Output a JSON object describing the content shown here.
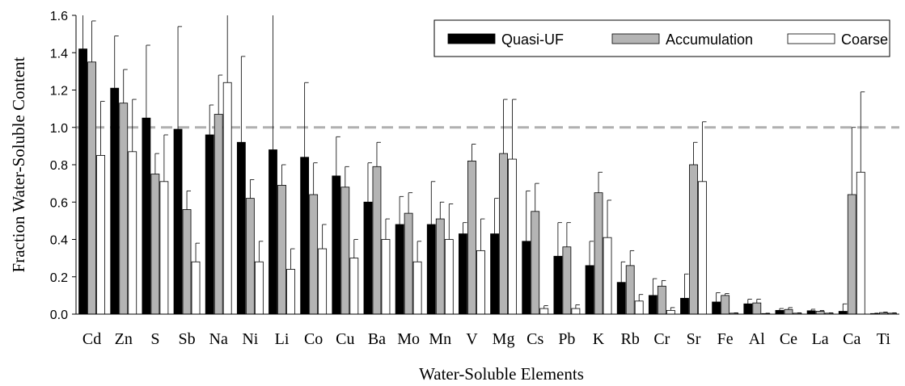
{
  "chart_data": {
    "type": "bar",
    "title": "",
    "xlabel": "Water-Soluble Elements",
    "ylabel": "Fraction Water-Soluble Content",
    "ylim": [
      0,
      1.6
    ],
    "yticks": [
      "0.0",
      "0.2",
      "0.4",
      "0.6",
      "0.8",
      "1.0",
      "1.2",
      "1.4",
      "1.6"
    ],
    "reference_line": {
      "y": 1.0,
      "style": "dashed",
      "color": "#b0b0b0"
    },
    "grid": false,
    "legend_position": "top-right",
    "categories": [
      "Cd",
      "Zn",
      "S",
      "Sb",
      "Na",
      "Ni",
      "Li",
      "Co",
      "Cu",
      "Ba",
      "Mo",
      "Mn",
      "V",
      "Mg",
      "Cs",
      "Pb",
      "K",
      "Rb",
      "Cr",
      "Sr",
      "Fe",
      "Al",
      "Ce",
      "La",
      "Ca",
      "Ti"
    ],
    "series": [
      {
        "name": "Quasi-UF",
        "color": "#000000",
        "values": [
          1.42,
          1.21,
          1.05,
          0.99,
          0.96,
          0.92,
          0.88,
          0.84,
          0.74,
          0.6,
          0.48,
          0.48,
          0.43,
          0.43,
          0.39,
          0.31,
          0.26,
          0.17,
          0.1,
          0.085,
          0.065,
          0.055,
          0.02,
          0.018,
          0.015,
          0.003
        ],
        "errors": [
          0.3,
          0.28,
          0.39,
          0.55,
          0.16,
          0.46,
          0.75,
          0.4,
          0.21,
          0.21,
          0.15,
          0.23,
          0.06,
          0.19,
          0.27,
          0.18,
          0.13,
          0.11,
          0.09,
          0.13,
          0.05,
          0.025,
          0.01,
          0.008,
          0.04,
          0.002
        ]
      },
      {
        "name": "Accumulation",
        "color": "#b4b4b4",
        "values": [
          1.35,
          1.13,
          0.75,
          0.56,
          1.07,
          0.62,
          0.69,
          0.64,
          0.68,
          0.79,
          0.54,
          0.51,
          0.82,
          0.86,
          0.55,
          0.36,
          0.65,
          0.26,
          0.15,
          0.8,
          0.1,
          0.06,
          0.025,
          0.015,
          0.64,
          0.008
        ],
        "errors": [
          0.22,
          0.18,
          0.11,
          0.1,
          0.21,
          0.1,
          0.11,
          0.17,
          0.11,
          0.13,
          0.11,
          0.09,
          0.09,
          0.29,
          0.15,
          0.13,
          0.11,
          0.08,
          0.03,
          0.12,
          0.01,
          0.02,
          0.01,
          0.005,
          0.36,
          0.003
        ]
      },
      {
        "name": "Coarse",
        "color": "#ffffff",
        "values": [
          0.85,
          0.87,
          0.71,
          0.28,
          1.24,
          0.28,
          0.24,
          0.35,
          0.3,
          0.4,
          0.28,
          0.4,
          0.34,
          0.83,
          0.03,
          0.03,
          0.41,
          0.07,
          0.02,
          0.71,
          0.005,
          0.003,
          0.005,
          0.005,
          0.76,
          0.005
        ],
        "errors": [
          0.29,
          0.28,
          0.25,
          0.1,
          0.45,
          0.11,
          0.11,
          0.13,
          0.1,
          0.11,
          0.11,
          0.19,
          0.17,
          0.32,
          0.015,
          0.02,
          0.2,
          0.035,
          0.015,
          0.32,
          0.002,
          0.002,
          0.002,
          0.002,
          0.43,
          0.002
        ]
      }
    ]
  }
}
